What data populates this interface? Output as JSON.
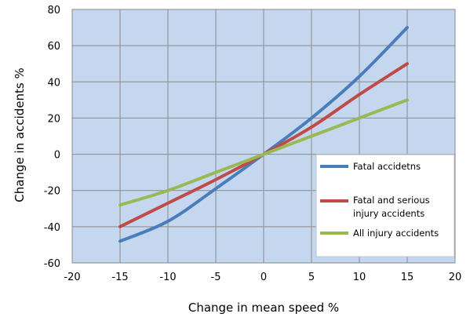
{
  "chart_data": {
    "type": "line",
    "xlabel": "Change in mean speed %",
    "ylabel": "Change in accidents %",
    "xlim": [
      -20,
      20
    ],
    "ylim": [
      -60,
      80
    ],
    "xticks": [
      -20,
      -15,
      -10,
      -5,
      0,
      5,
      10,
      15,
      20
    ],
    "yticks": [
      -60,
      -40,
      -20,
      0,
      20,
      40,
      60,
      80
    ],
    "grid": true,
    "legend_position": "bottom-right",
    "plot_background": "#c5d7ef",
    "series": [
      {
        "name": "Fatal accidetns",
        "color": "#4a7ebb",
        "x": [
          -15,
          -10,
          -5,
          0,
          5,
          10,
          15
        ],
        "y": [
          -48,
          -37,
          -19,
          0,
          20,
          43,
          70
        ]
      },
      {
        "name": "Fatal and serious injury accidents",
        "name_lines": [
          "Fatal and serious",
          "injury accidents"
        ],
        "color": "#be4b48",
        "x": [
          -15,
          -10,
          -5,
          0,
          5,
          10,
          15
        ],
        "y": [
          -40,
          -27,
          -14,
          0,
          15,
          33,
          50
        ]
      },
      {
        "name": "All injury accidents",
        "color": "#98b954",
        "x": [
          -15,
          -10,
          -5,
          0,
          5,
          10,
          15
        ],
        "y": [
          -28,
          -20,
          -10,
          0,
          10,
          20,
          30
        ]
      }
    ]
  }
}
